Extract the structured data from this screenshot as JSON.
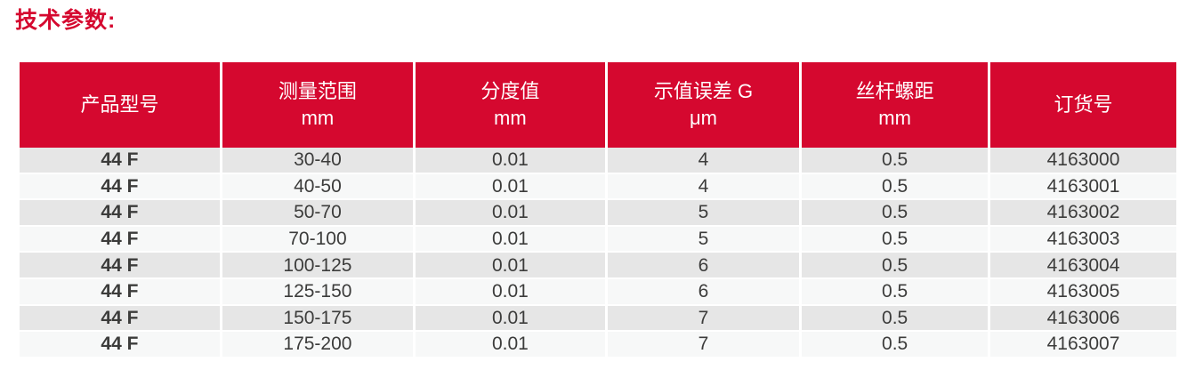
{
  "page": {
    "title": "技术参数:"
  },
  "colors": {
    "brand_red": "#D5082F",
    "row_alt_gray": "#E6E6E6",
    "row_alt_light": "#F7F8F8",
    "header_text": "#FFFFFF",
    "body_text": "#3C3C3B",
    "separator": "#FFFFFF"
  },
  "table": {
    "columns": [
      {
        "label": "产品型号",
        "unit": ""
      },
      {
        "label": "测量范围",
        "unit": "mm"
      },
      {
        "label": "分度值",
        "unit": "mm"
      },
      {
        "label": "示值误差 G",
        "unit": "μm"
      },
      {
        "label": "丝杆螺距",
        "unit": "mm"
      },
      {
        "label": "订货号",
        "unit": ""
      }
    ],
    "rows": [
      [
        "44 F",
        "30-40",
        "0.01",
        "4",
        "0.5",
        "4163000"
      ],
      [
        "44 F",
        "40-50",
        "0.01",
        "4",
        "0.5",
        "4163001"
      ],
      [
        "44 F",
        "50-70",
        "0.01",
        "5",
        "0.5",
        "4163002"
      ],
      [
        "44 F",
        "70-100",
        "0.01",
        "5",
        "0.5",
        "4163003"
      ],
      [
        "44 F",
        "100-125",
        "0.01",
        "6",
        "0.5",
        "4163004"
      ],
      [
        "44 F",
        "125-150",
        "0.01",
        "6",
        "0.5",
        "4163005"
      ],
      [
        "44 F",
        "150-175",
        "0.01",
        "7",
        "0.5",
        "4163006"
      ],
      [
        "44 F",
        "175-200",
        "0.01",
        "7",
        "0.5",
        "4163007"
      ]
    ]
  }
}
